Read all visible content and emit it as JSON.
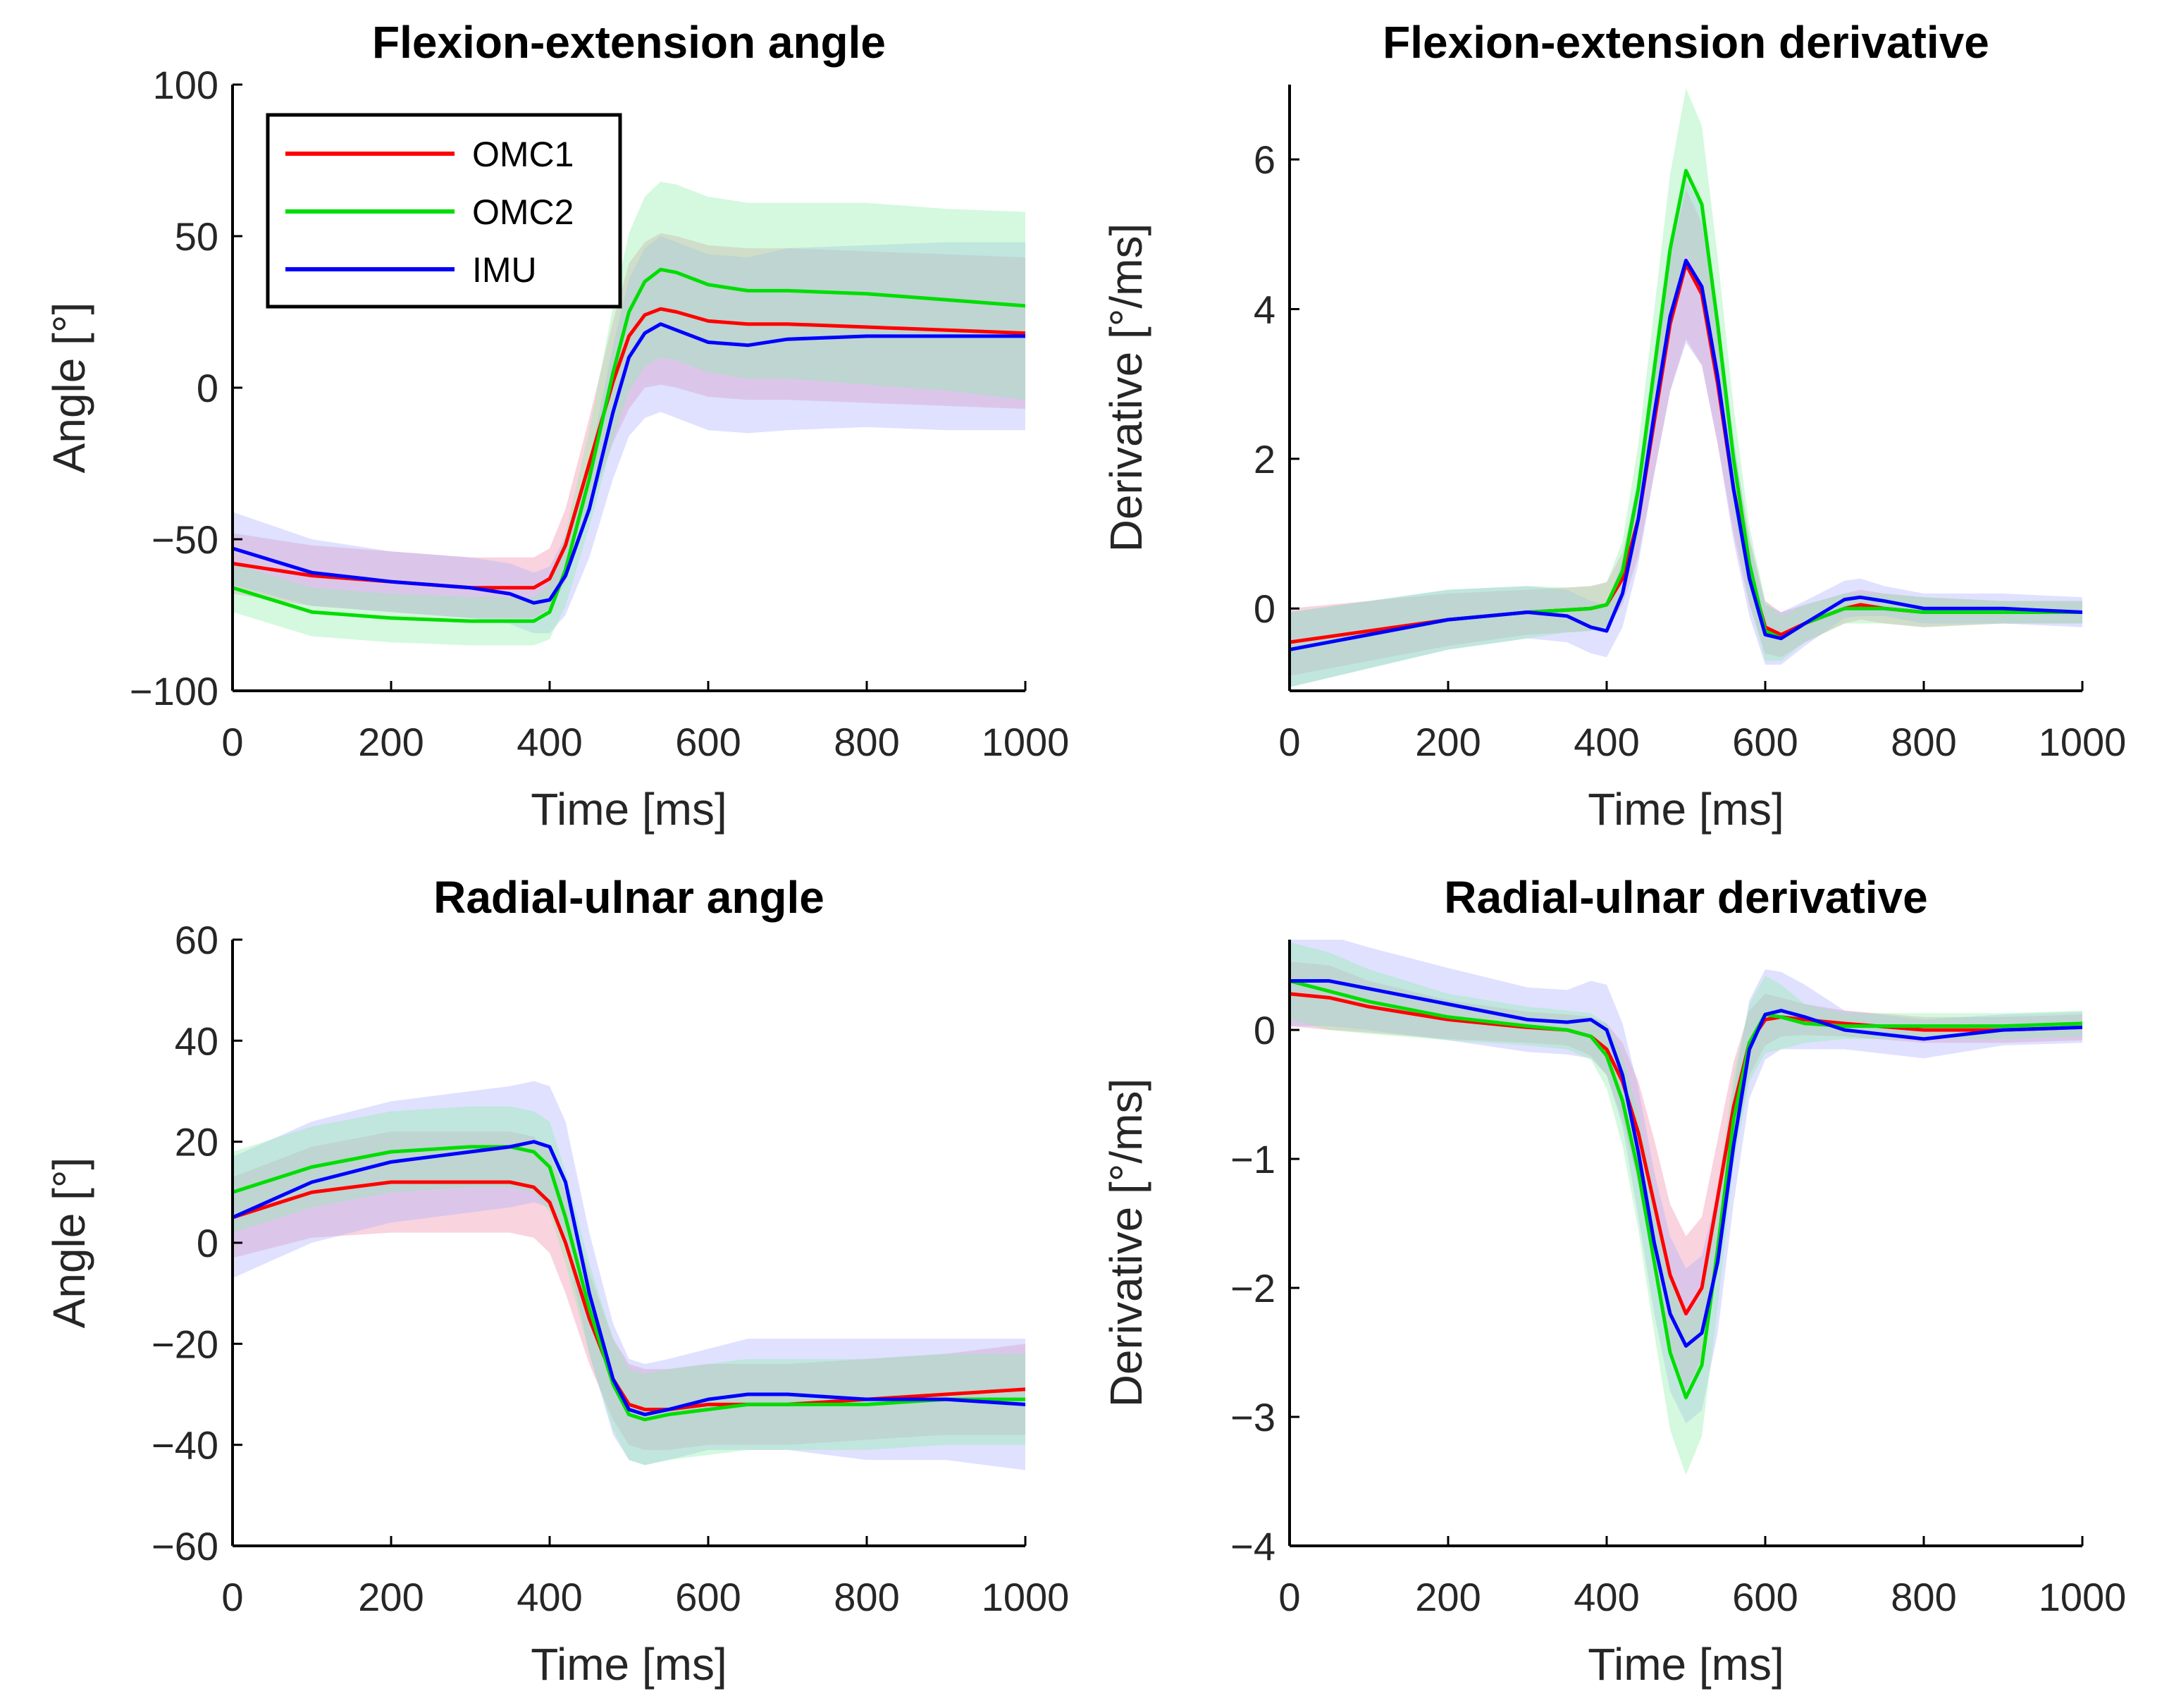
{
  "chart_data": [
    {
      "type": "line",
      "title": "Flexion-extension angle",
      "xlabel": "Time [ms]",
      "ylabel": "Angle [°]",
      "xlim": [
        0,
        1000
      ],
      "ylim": [
        -100,
        100
      ],
      "xticks": [
        0,
        200,
        400,
        600,
        800,
        1000
      ],
      "xtick_labels": [
        "0",
        "200",
        "400",
        "600",
        "800",
        "1000"
      ],
      "yticks": [
        -100,
        -50,
        0,
        50,
        100
      ],
      "ytick_labels": [
        "−100",
        "−50",
        "0",
        "50",
        "100"
      ],
      "x": [
        0,
        100,
        200,
        300,
        350,
        380,
        400,
        420,
        450,
        480,
        500,
        520,
        540,
        560,
        600,
        650,
        700,
        800,
        900,
        1000
      ],
      "legend": {
        "position": "top-left",
        "entries": [
          "OMC1",
          "OMC2",
          "IMU"
        ]
      },
      "series": [
        {
          "name": "OMC1",
          "color": "#ff0000",
          "values": [
            -58,
            -62,
            -64,
            -66,
            -66,
            -66,
            -63,
            -52,
            -25,
            2,
            17,
            24,
            26,
            25,
            22,
            21,
            21,
            20,
            19,
            18
          ],
          "band": [
            10,
            10,
            10,
            10,
            10,
            10,
            10,
            12,
            15,
            20,
            24,
            24,
            25,
            25,
            25,
            25,
            25,
            25,
            25,
            25
          ],
          "band_color": "#f08ca8"
        },
        {
          "name": "OMC2",
          "color": "#00dd00",
          "values": [
            -66,
            -74,
            -76,
            -77,
            -77,
            -77,
            -74,
            -60,
            -30,
            5,
            25,
            35,
            39,
            38,
            34,
            32,
            32,
            31,
            29,
            27
          ],
          "band": [
            8,
            8,
            8,
            8,
            8,
            8,
            9,
            12,
            16,
            22,
            26,
            28,
            29,
            29,
            29,
            29,
            29,
            30,
            30,
            31
          ],
          "band_color": "#8ff0a8"
        },
        {
          "name": "IMU",
          "color": "#0000ff",
          "values": [
            -53,
            -61,
            -64,
            -66,
            -68,
            -71,
            -70,
            -62,
            -40,
            -8,
            10,
            18,
            21,
            19,
            15,
            14,
            16,
            17,
            17,
            17
          ],
          "band": [
            12,
            11,
            10,
            10,
            10,
            10,
            11,
            13,
            16,
            22,
            26,
            28,
            29,
            29,
            29,
            29,
            30,
            30,
            31,
            31
          ],
          "band_color": "#aab0ff"
        }
      ]
    },
    {
      "type": "line",
      "title": "Flexion-extension derivative",
      "xlabel": "Time [ms]",
      "ylabel": "Derivative [°/ms]",
      "xlim": [
        0,
        1000
      ],
      "ylim": [
        -1.1,
        7
      ],
      "xticks": [
        0,
        200,
        400,
        600,
        800,
        1000
      ],
      "xtick_labels": [
        "0",
        "200",
        "400",
        "600",
        "800",
        "1000"
      ],
      "yticks": [
        0,
        2,
        4,
        6
      ],
      "ytick_labels": [
        "0",
        "2",
        "4",
        "6"
      ],
      "x": [
        0,
        100,
        200,
        300,
        350,
        380,
        400,
        420,
        440,
        460,
        480,
        500,
        520,
        540,
        560,
        580,
        600,
        620,
        650,
        700,
        720,
        750,
        800,
        900,
        1000
      ],
      "series": [
        {
          "name": "OMC1",
          "color": "#ff0000",
          "values": [
            -0.45,
            -0.3,
            -0.15,
            -0.05,
            -0.02,
            0.0,
            0.05,
            0.4,
            1.2,
            2.5,
            3.8,
            4.6,
            4.2,
            3.0,
            1.6,
            0.5,
            -0.25,
            -0.35,
            -0.2,
            0.0,
            0.05,
            0.0,
            -0.05,
            -0.05,
            -0.05
          ],
          "band": [
            0.45,
            0.4,
            0.35,
            0.3,
            0.3,
            0.3,
            0.3,
            0.35,
            0.5,
            0.7,
            0.9,
            1.0,
            0.95,
            0.8,
            0.6,
            0.45,
            0.35,
            0.3,
            0.25,
            0.2,
            0.2,
            0.2,
            0.2,
            0.15,
            0.15
          ],
          "band_color": "#f08ca8"
        },
        {
          "name": "OMC2",
          "color": "#00dd00",
          "values": [
            -0.55,
            -0.35,
            -0.15,
            -0.05,
            -0.02,
            0.0,
            0.05,
            0.5,
            1.6,
            3.2,
            4.8,
            5.85,
            5.4,
            3.8,
            2.0,
            0.6,
            -0.3,
            -0.4,
            -0.2,
            0.0,
            0.0,
            0.0,
            -0.05,
            -0.05,
            -0.05
          ],
          "band": [
            0.5,
            0.45,
            0.4,
            0.35,
            0.3,
            0.3,
            0.3,
            0.4,
            0.6,
            0.8,
            1.0,
            1.1,
            1.05,
            0.9,
            0.7,
            0.5,
            0.4,
            0.3,
            0.25,
            0.2,
            0.2,
            0.2,
            0.2,
            0.15,
            0.15
          ],
          "band_color": "#8ff0a8"
        },
        {
          "name": "IMU",
          "color": "#0000ff",
          "values": [
            -0.55,
            -0.35,
            -0.15,
            -0.05,
            -0.1,
            -0.25,
            -0.3,
            0.2,
            1.2,
            2.6,
            3.9,
            4.65,
            4.3,
            3.1,
            1.6,
            0.4,
            -0.35,
            -0.4,
            -0.2,
            0.12,
            0.15,
            0.1,
            0.0,
            0.0,
            -0.05
          ],
          "band": [
            0.5,
            0.45,
            0.4,
            0.35,
            0.35,
            0.35,
            0.35,
            0.45,
            0.6,
            0.8,
            1.0,
            1.1,
            1.05,
            0.9,
            0.7,
            0.5,
            0.4,
            0.35,
            0.3,
            0.25,
            0.25,
            0.2,
            0.2,
            0.2,
            0.2
          ],
          "band_color": "#aab0ff"
        }
      ]
    },
    {
      "type": "line",
      "title": "Radial-ulnar angle",
      "xlabel": "Time [ms]",
      "ylabel": "Angle [°]",
      "xlim": [
        0,
        1000
      ],
      "ylim": [
        -60,
        60
      ],
      "xticks": [
        0,
        200,
        400,
        600,
        800,
        1000
      ],
      "xtick_labels": [
        "0",
        "200",
        "400",
        "600",
        "800",
        "1000"
      ],
      "yticks": [
        -60,
        -40,
        -20,
        0,
        20,
        40,
        60
      ],
      "ytick_labels": [
        "−60",
        "−40",
        "−20",
        "0",
        "20",
        "40",
        "60"
      ],
      "x": [
        0,
        100,
        200,
        300,
        350,
        380,
        400,
        420,
        450,
        480,
        500,
        520,
        550,
        600,
        650,
        700,
        800,
        900,
        1000
      ],
      "series": [
        {
          "name": "OMC1",
          "color": "#ff0000",
          "values": [
            5,
            10,
            12,
            12,
            12,
            11,
            8,
            0,
            -15,
            -27,
            -32,
            -33,
            -33,
            -32,
            -32,
            -32,
            -31,
            -30,
            -29
          ],
          "band": [
            8,
            9,
            10,
            10,
            10,
            10,
            10,
            10,
            9,
            8,
            8,
            8,
            8,
            8,
            8,
            8,
            8,
            8,
            9
          ],
          "band_color": "#f08ca8"
        },
        {
          "name": "OMC2",
          "color": "#00dd00",
          "values": [
            10,
            15,
            18,
            19,
            19,
            18,
            15,
            5,
            -13,
            -28,
            -34,
            -35,
            -34,
            -33,
            -32,
            -32,
            -32,
            -31,
            -31
          ],
          "band": [
            8,
            8,
            8,
            8,
            8,
            8,
            9,
            9,
            9,
            9,
            9,
            9,
            9,
            9,
            9,
            9,
            9,
            9,
            9
          ],
          "band_color": "#8ff0a8"
        },
        {
          "name": "IMU",
          "color": "#0000ff",
          "values": [
            5,
            12,
            16,
            18,
            19,
            20,
            19,
            12,
            -10,
            -27,
            -33,
            -34,
            -33,
            -31,
            -30,
            -30,
            -31,
            -31,
            -32
          ],
          "band": [
            12,
            12,
            12,
            12,
            12,
            12,
            12,
            12,
            12,
            11,
            10,
            10,
            10,
            10,
            11,
            11,
            12,
            12,
            13
          ],
          "band_color": "#aab0ff"
        }
      ]
    },
    {
      "type": "line",
      "title": "Radial-ulnar derivative",
      "xlabel": "Time [ms]",
      "ylabel": "Derivative [°/ms]",
      "xlim": [
        0,
        1000
      ],
      "ylim": [
        -4,
        0.7
      ],
      "xticks": [
        0,
        200,
        400,
        600,
        800,
        1000
      ],
      "xtick_labels": [
        "0",
        "200",
        "400",
        "600",
        "800",
        "1000"
      ],
      "yticks": [
        -4,
        -3,
        -2,
        -1,
        0
      ],
      "ytick_labels": [
        "−4",
        "−3",
        "−2",
        "−1",
        "0"
      ],
      "x": [
        0,
        50,
        100,
        200,
        300,
        350,
        380,
        400,
        420,
        440,
        460,
        480,
        500,
        520,
        540,
        560,
        580,
        600,
        620,
        650,
        700,
        800,
        900,
        1000
      ],
      "series": [
        {
          "name": "OMC1",
          "color": "#ff0000",
          "values": [
            0.28,
            0.25,
            0.18,
            0.08,
            0.02,
            0.0,
            -0.05,
            -0.15,
            -0.4,
            -0.8,
            -1.35,
            -1.9,
            -2.2,
            -2.0,
            -1.3,
            -0.6,
            -0.1,
            0.08,
            0.1,
            0.08,
            0.05,
            0.0,
            0.0,
            0.02
          ],
          "band": [
            0.25,
            0.25,
            0.2,
            0.15,
            0.12,
            0.12,
            0.15,
            0.2,
            0.3,
            0.4,
            0.5,
            0.55,
            0.6,
            0.55,
            0.45,
            0.35,
            0.25,
            0.2,
            0.15,
            0.12,
            0.1,
            0.1,
            0.1,
            0.1
          ],
          "band_color": "#f08ca8"
        },
        {
          "name": "OMC2",
          "color": "#00dd00",
          "values": [
            0.38,
            0.3,
            0.22,
            0.1,
            0.03,
            0.0,
            -0.05,
            -0.2,
            -0.55,
            -1.1,
            -1.8,
            -2.5,
            -2.85,
            -2.6,
            -1.7,
            -0.7,
            -0.1,
            0.12,
            0.1,
            0.05,
            0.03,
            0.03,
            0.03,
            0.05
          ],
          "band": [
            0.3,
            0.3,
            0.25,
            0.18,
            0.15,
            0.15,
            0.18,
            0.25,
            0.35,
            0.45,
            0.55,
            0.6,
            0.6,
            0.55,
            0.45,
            0.35,
            0.3,
            0.3,
            0.25,
            0.15,
            0.1,
            0.1,
            0.1,
            0.1
          ],
          "band_color": "#8ff0a8"
        },
        {
          "name": "IMU",
          "color": "#0000ff",
          "values": [
            0.38,
            0.38,
            0.32,
            0.2,
            0.08,
            0.06,
            0.08,
            0.0,
            -0.35,
            -0.95,
            -1.65,
            -2.2,
            -2.45,
            -2.35,
            -1.8,
            -0.9,
            -0.15,
            0.12,
            0.15,
            0.1,
            0.0,
            -0.07,
            0.0,
            0.02
          ],
          "band": [
            0.35,
            0.35,
            0.32,
            0.28,
            0.25,
            0.25,
            0.3,
            0.35,
            0.4,
            0.5,
            0.55,
            0.6,
            0.6,
            0.6,
            0.55,
            0.45,
            0.38,
            0.35,
            0.3,
            0.25,
            0.15,
            0.15,
            0.12,
            0.12
          ],
          "band_color": "#aab0ff"
        }
      ]
    }
  ]
}
